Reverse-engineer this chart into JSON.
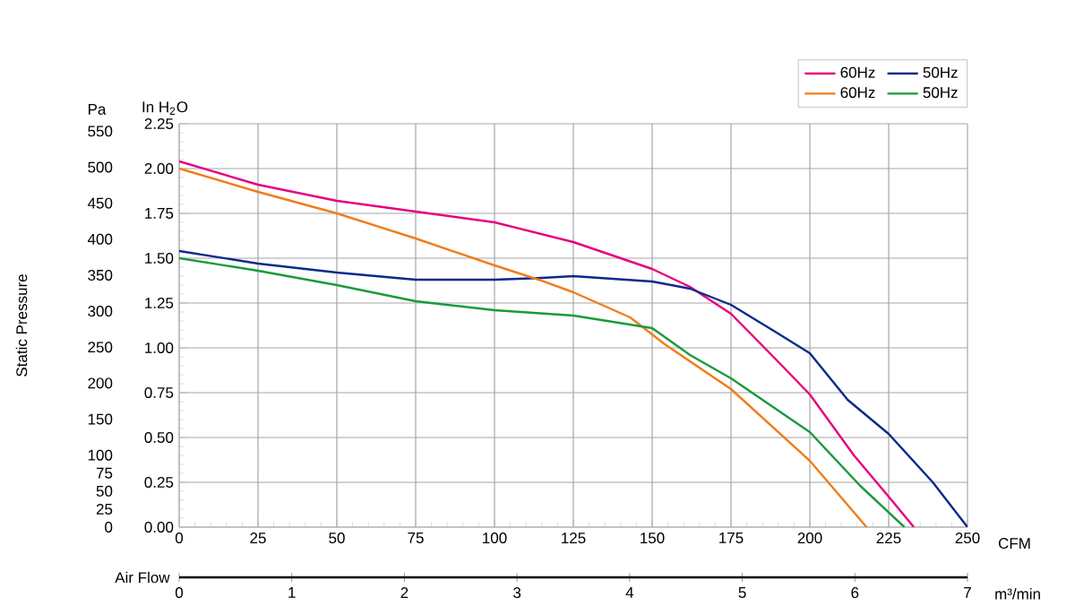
{
  "chart_data": {
    "type": "line",
    "ylabel": "In H$_{2}$O",
    "y2label": "Pa",
    "xlabel": "CFM",
    "x2label": "m³/min",
    "annotations": [
      "Static Pressure",
      "Air Flow"
    ],
    "xlim": [
      0,
      250
    ],
    "xticks": [
      0,
      25,
      50,
      75,
      100,
      125,
      150,
      175,
      200,
      225,
      250
    ],
    "ylim": [
      0,
      2.25
    ],
    "yticks": [
      {
        "value": 0,
        "label": "0.00"
      },
      {
        "value": 0.25,
        "label": "0.25"
      },
      {
        "value": 0.5,
        "label": "0.50"
      },
      {
        "value": 0.75,
        "label": "0.75"
      },
      {
        "value": 1,
        "label": "1.00"
      },
      {
        "value": 1.25,
        "label": "1.25"
      },
      {
        "value": 1.5,
        "label": "1.50"
      },
      {
        "value": 1.75,
        "label": "1.75"
      },
      {
        "value": 2,
        "label": "2.00"
      },
      {
        "value": 2.25,
        "label": "2.25"
      }
    ],
    "y2lim": [
      0,
      560.4
    ],
    "y2ticks": [
      0,
      25,
      50,
      75,
      100,
      150,
      200,
      250,
      300,
      350,
      400,
      450,
      500,
      550
    ],
    "x2lim": [
      0,
      7
    ],
    "x2ticks": [
      0,
      1,
      2,
      3,
      4,
      5,
      6,
      7
    ],
    "grid": true,
    "legend": "top right",
    "line_style": "solid",
    "marker": "none",
    "series": [
      {
        "name": "60Hz",
        "color": "#e6007e",
        "x": [
          0,
          25,
          50,
          75,
          100,
          125,
          140,
          150,
          162,
          175,
          189,
          200,
          214,
          225,
          233
        ],
        "values": [
          2.04,
          1.91,
          1.82,
          1.76,
          1.7,
          1.59,
          1.5,
          1.44,
          1.34,
          1.19,
          0.94,
          0.74,
          0.4,
          0.17,
          0
        ]
      },
      {
        "name": "50Hz",
        "color": "#0a2a8a",
        "x": [
          0,
          25,
          50,
          75,
          100,
          115,
          125,
          150,
          162,
          175,
          189,
          200,
          212,
          225,
          239,
          250
        ],
        "values": [
          1.54,
          1.47,
          1.42,
          1.38,
          1.38,
          1.39,
          1.4,
          1.37,
          1.33,
          1.24,
          1.09,
          0.97,
          0.71,
          0.52,
          0.25,
          0
        ]
      },
      {
        "name": "60Hz",
        "color": "#f07d1a",
        "x": [
          0,
          25,
          50,
          75,
          100,
          114,
          125,
          143,
          154,
          175,
          200,
          218
        ],
        "values": [
          2.0,
          1.87,
          1.75,
          1.61,
          1.46,
          1.38,
          1.31,
          1.17,
          1.02,
          0.77,
          0.37,
          0
        ]
      },
      {
        "name": "50Hz",
        "color": "#1a9a3a",
        "x": [
          0,
          25,
          50,
          75,
          100,
          125,
          150,
          162,
          175,
          200,
          216,
          230
        ],
        "values": [
          1.5,
          1.43,
          1.35,
          1.26,
          1.21,
          1.18,
          1.11,
          0.96,
          0.83,
          0.53,
          0.23,
          0
        ]
      }
    ]
  }
}
